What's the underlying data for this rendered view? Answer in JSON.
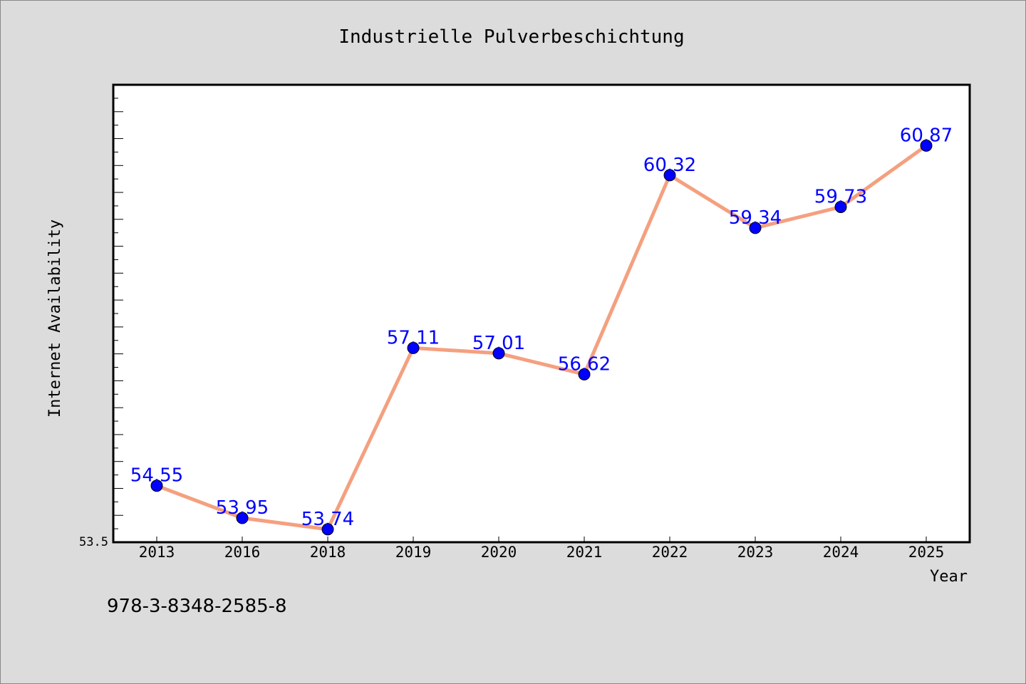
{
  "chart_data": {
    "type": "line",
    "title": "Industrielle Pulverbeschichtung",
    "xlabel": "Year",
    "ylabel": "Internet Availability",
    "categories": [
      "2013",
      "2016",
      "2018",
      "2019",
      "2020",
      "2021",
      "2022",
      "2023",
      "2024",
      "2025"
    ],
    "series": [
      {
        "values": [
          54.55,
          53.95,
          53.74,
          57.11,
          57.01,
          56.62,
          60.32,
          59.34,
          59.73,
          60.87
        ],
        "labels": [
          "54.55",
          "53.95",
          "53.74",
          "57.11",
          "57.01",
          "56.62",
          "60.32",
          "59.34",
          "59.73",
          "60.87"
        ]
      }
    ],
    "ylim": [
      53.5,
      62.0
    ],
    "yticks_labeled": [
      "53.5"
    ],
    "grid": false,
    "colors": {
      "line": "#f4a07f",
      "marker": "#0000ff",
      "data_label": "#0000ff",
      "plot_background": "#ffffff",
      "figure_background": "#dcdcdc"
    }
  },
  "footer": {
    "isbn": "978-3-8348-2585-8"
  }
}
